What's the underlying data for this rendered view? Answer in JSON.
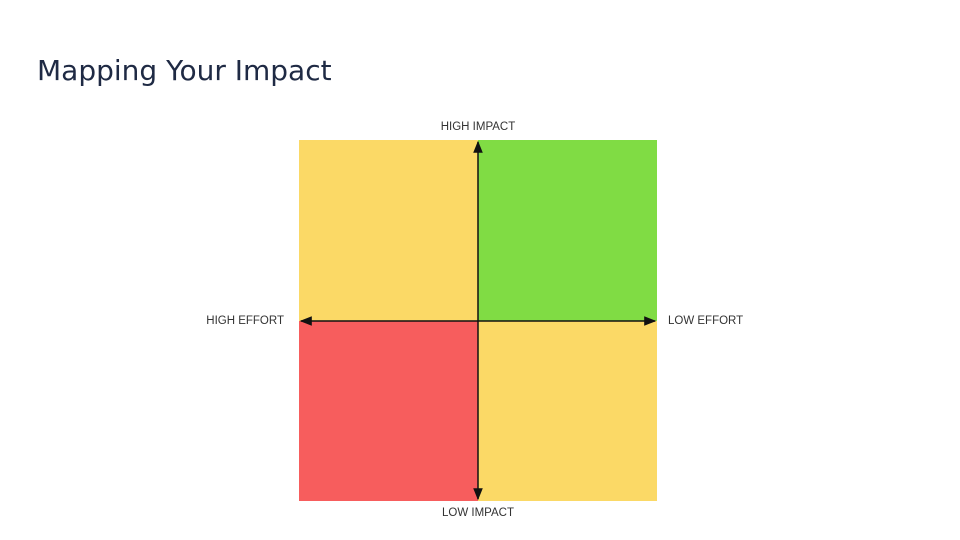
{
  "title": "Mapping Your Impact",
  "axes": {
    "top": "HIGH IMPACT",
    "bottom": "LOW IMPACT",
    "left": "HIGH EFFORT",
    "right": "LOW EFFORT"
  }
}
